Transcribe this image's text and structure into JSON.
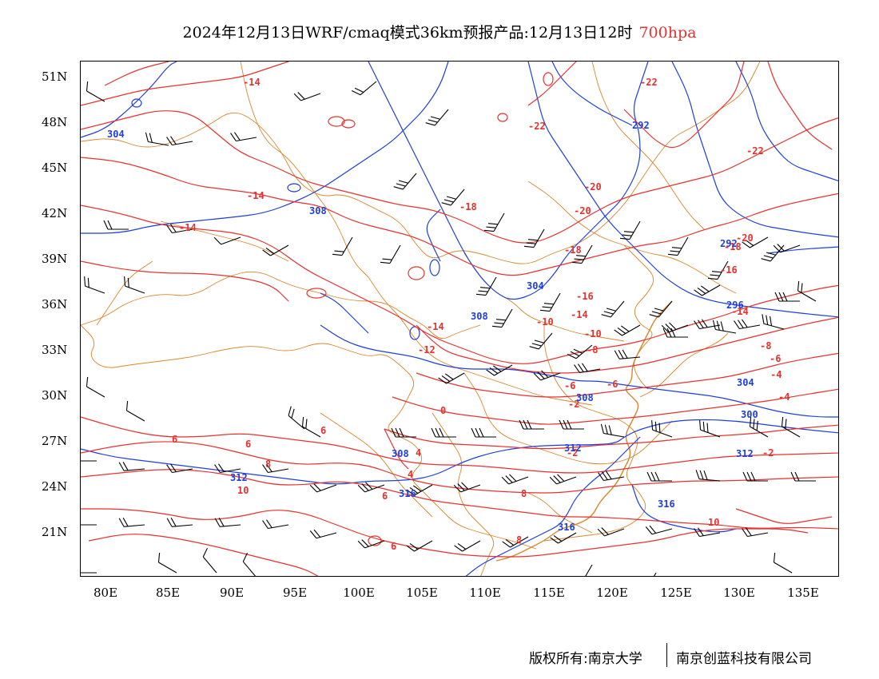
{
  "title": {
    "main": "2024年12月13日WRF/cmaq模式36km预报产品:12月13日12时",
    "level": "700hpa"
  },
  "colors": {
    "temperature": "#e8312f",
    "geopotential": "#1f3fdc",
    "boundary": "#d9862b",
    "barb": "#000000"
  },
  "axes": {
    "lat_labels": [
      "51N",
      "48N",
      "45N",
      "42N",
      "39N",
      "36N",
      "33N",
      "30N",
      "27N",
      "24N",
      "21N"
    ],
    "lon_labels": [
      "80E",
      "85E",
      "90E",
      "95E",
      "100E",
      "105E",
      "110E",
      "115E",
      "120E",
      "125E",
      "130E",
      "135E"
    ]
  },
  "contour_labels": {
    "temperature": [
      "-14",
      "-14",
      "-14",
      "-18",
      "-22",
      "-22",
      "-22",
      "-20",
      "-20",
      "-20",
      "-18",
      "-18",
      "-16",
      "-16",
      "-14",
      "-14",
      "-14",
      "-12",
      "-10",
      "-10",
      "-8",
      "-8",
      "-6",
      "-6",
      "-6",
      "-4",
      "-4",
      "-2",
      "-2",
      "-2",
      "0",
      "4",
      "4",
      "6",
      "6",
      "6",
      "8",
      "8",
      "6",
      "10",
      "6",
      "8",
      "10"
    ],
    "geopotential": [
      "304",
      "292",
      "308",
      "304",
      "292",
      "296",
      "308",
      "304",
      "308",
      "300",
      "308",
      "312",
      "312",
      "312",
      "316",
      "316",
      "316"
    ]
  },
  "footer": {
    "copyright": "版权所有:南京大学",
    "company": "南京创蓝科技有限公司"
  }
}
